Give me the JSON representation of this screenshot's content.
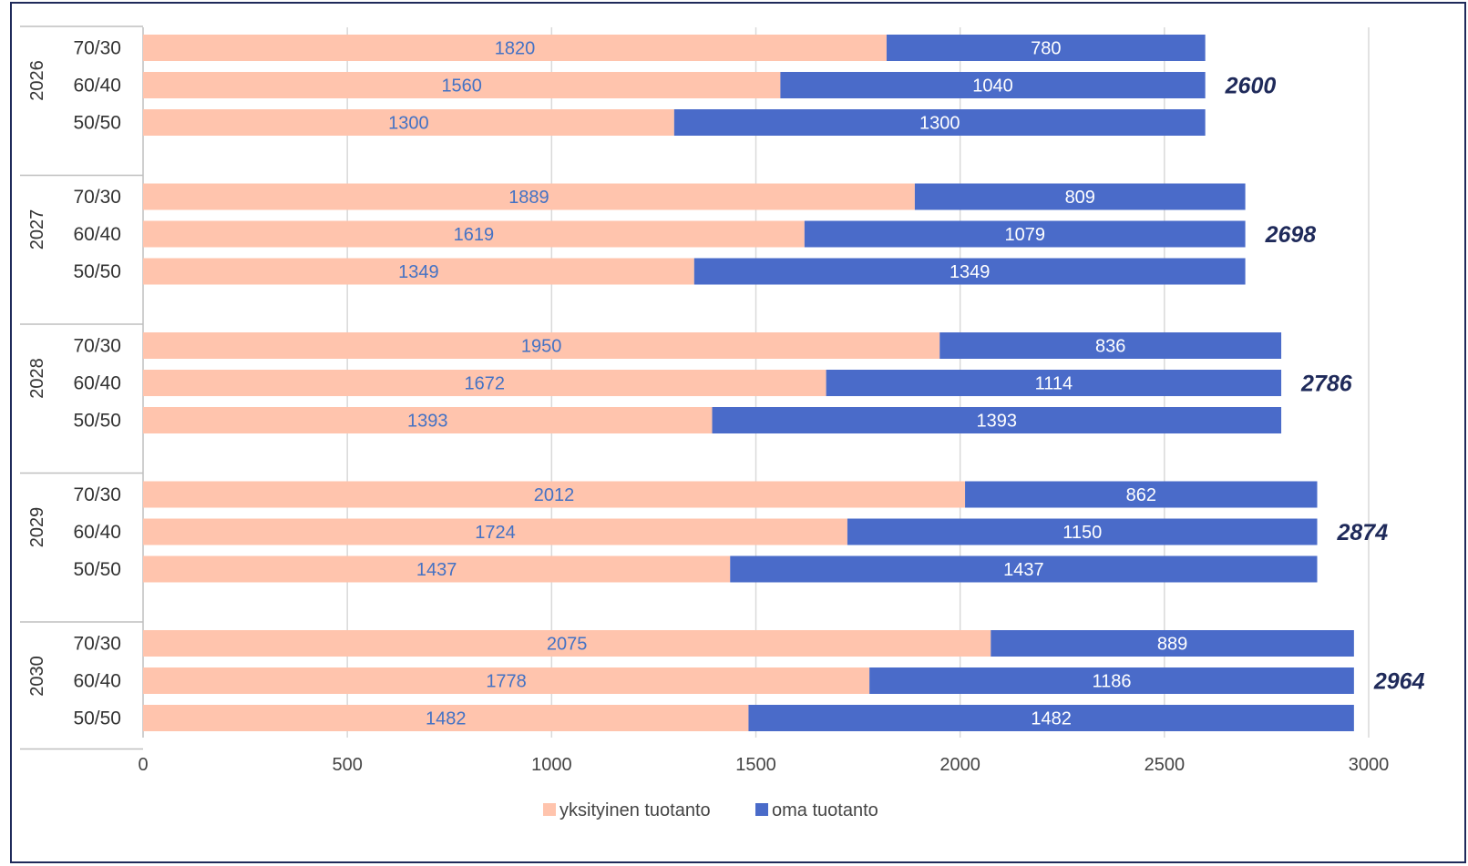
{
  "chart_data": {
    "type": "bar",
    "orientation": "horizontal",
    "stacked": true,
    "xlim": [
      0,
      3000
    ],
    "x_ticks": [
      "0",
      "500",
      "1000",
      "1500",
      "2000",
      "2500",
      "3000"
    ],
    "grid": true,
    "legend_position": "bottom",
    "groups": [
      {
        "year": "2026",
        "total": "2600",
        "rows": [
          {
            "label": "70/30",
            "private": 1820,
            "own": 780
          },
          {
            "label": "60/40",
            "private": 1560,
            "own": 1040
          },
          {
            "label": "50/50",
            "private": 1300,
            "own": 1300
          }
        ]
      },
      {
        "year": "2027",
        "total": "2698",
        "rows": [
          {
            "label": "70/30",
            "private": 1889,
            "own": 809
          },
          {
            "label": "60/40",
            "private": 1619,
            "own": 1079
          },
          {
            "label": "50/50",
            "private": 1349,
            "own": 1349
          }
        ]
      },
      {
        "year": "2028",
        "total": "2786",
        "rows": [
          {
            "label": "70/30",
            "private": 1950,
            "own": 836
          },
          {
            "label": "60/40",
            "private": 1672,
            "own": 1114
          },
          {
            "label": "50/50",
            "private": 1393,
            "own": 1393
          }
        ]
      },
      {
        "year": "2029",
        "total": "2874",
        "rows": [
          {
            "label": "70/30",
            "private": 2012,
            "own": 862
          },
          {
            "label": "60/40",
            "private": 1724,
            "own": 1150
          },
          {
            "label": "50/50",
            "private": 1437,
            "own": 1437
          }
        ]
      },
      {
        "year": "2030",
        "total": "2964",
        "rows": [
          {
            "label": "70/30",
            "private": 2075,
            "own": 889
          },
          {
            "label": "60/40",
            "private": 1778,
            "own": 1186
          },
          {
            "label": "50/50",
            "private": 1482,
            "own": 1482
          }
        ]
      }
    ],
    "series": [
      {
        "name": "yksityinen tuotanto",
        "key": "private",
        "color": "#ffc4ad"
      },
      {
        "name": "oma tuotanto",
        "key": "own",
        "color": "#4a6bc9"
      }
    ]
  },
  "colors": {
    "frame_border": "#1f2a5a",
    "grid": "#d9d9d9",
    "axis": "#bfbfbf"
  }
}
